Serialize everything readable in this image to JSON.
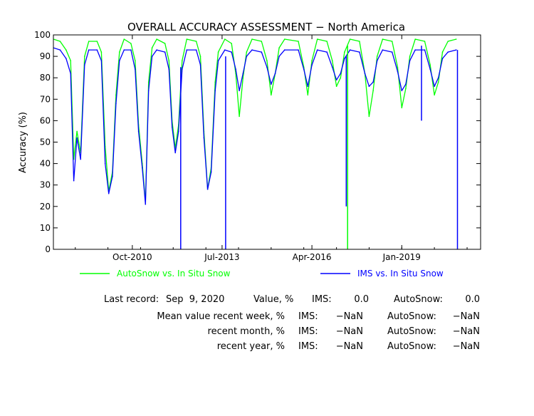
{
  "chart_data": {
    "type": "line",
    "title": "OVERALL ACCURACY ASSESSMENT − North America",
    "xlabel": "",
    "ylabel": "Accuracy (%)",
    "ylim": [
      0,
      100
    ],
    "yticks": [
      0,
      10,
      20,
      30,
      40,
      50,
      60,
      70,
      80,
      90,
      100
    ],
    "xlim": [
      "2008-05-01",
      "2021-06-01"
    ],
    "xticks": [
      {
        "date": "2010-10-01",
        "label": "Oct-2010"
      },
      {
        "date": "2013-07-01",
        "label": "Jul-2013"
      },
      {
        "date": "2016-04-01",
        "label": "Apr-2016"
      },
      {
        "date": "2019-01-01",
        "label": "Jan-2019"
      }
    ],
    "grid": false,
    "legend_position": "bottom",
    "series": [
      {
        "name": "AutoSnow vs. In Situ Snow",
        "color": "#00ff00",
        "points": [
          [
            "2008-05-01",
            98
          ],
          [
            "2008-07-15",
            97
          ],
          [
            "2008-09-20",
            93
          ],
          [
            "2008-11-10",
            88
          ],
          [
            "2008-12-15",
            42
          ],
          [
            "2009-01-20",
            55
          ],
          [
            "2009-03-01",
            45
          ],
          [
            "2009-04-15",
            90
          ],
          [
            "2009-06-01",
            97
          ],
          [
            "2009-09-01",
            97
          ],
          [
            "2009-10-20",
            92
          ],
          [
            "2009-12-01",
            48
          ],
          [
            "2010-01-10",
            27
          ],
          [
            "2010-02-20",
            36
          ],
          [
            "2010-04-01",
            72
          ],
          [
            "2010-05-10",
            92
          ],
          [
            "2010-07-01",
            98
          ],
          [
            "2010-09-15",
            96
          ],
          [
            "2010-11-01",
            88
          ],
          [
            "2010-12-10",
            58
          ],
          [
            "2011-01-20",
            40
          ],
          [
            "2011-02-25",
            22
          ],
          [
            "2011-04-01",
            78
          ],
          [
            "2011-05-10",
            94
          ],
          [
            "2011-07-01",
            98
          ],
          [
            "2011-10-01",
            96
          ],
          [
            "2011-11-15",
            88
          ],
          [
            "2011-12-20",
            60
          ],
          [
            "2012-01-25",
            47
          ],
          [
            "2012-03-01",
            58
          ],
          [
            "2012-04-10",
            88
          ],
          [
            "2012-06-01",
            98
          ],
          [
            "2012-09-15",
            97
          ],
          [
            "2012-11-01",
            90
          ],
          [
            "2012-12-10",
            55
          ],
          [
            "2013-01-20",
            28
          ],
          [
            "2013-03-01",
            38
          ],
          [
            "2013-04-15",
            78
          ],
          [
            "2013-05-20",
            92
          ],
          [
            "2013-08-01",
            98
          ],
          [
            "2013-10-15",
            96
          ],
          [
            "2013-12-01",
            82
          ],
          [
            "2014-01-10",
            62
          ],
          [
            "2014-02-20",
            80
          ],
          [
            "2014-04-01",
            92
          ],
          [
            "2014-06-01",
            98
          ],
          [
            "2014-09-15",
            97
          ],
          [
            "2014-11-15",
            88
          ],
          [
            "2015-01-01",
            72
          ],
          [
            "2015-02-15",
            82
          ],
          [
            "2015-04-01",
            94
          ],
          [
            "2015-06-01",
            98
          ],
          [
            "2015-11-01",
            97
          ],
          [
            "2016-01-01",
            85
          ],
          [
            "2016-02-15",
            72
          ],
          [
            "2016-04-01",
            88
          ],
          [
            "2016-06-01",
            98
          ],
          [
            "2016-09-15",
            97
          ],
          [
            "2016-11-15",
            88
          ],
          [
            "2017-01-01",
            76
          ],
          [
            "2017-02-15",
            80
          ],
          [
            "2017-04-01",
            92
          ],
          [
            "2017-06-01",
            98
          ],
          [
            "2017-09-15",
            97
          ],
          [
            "2017-11-15",
            82
          ],
          [
            "2018-01-01",
            62
          ],
          [
            "2018-02-15",
            74
          ],
          [
            "2018-04-01",
            90
          ],
          [
            "2018-06-01",
            98
          ],
          [
            "2018-09-15",
            97
          ],
          [
            "2018-11-15",
            85
          ],
          [
            "2019-01-01",
            66
          ],
          [
            "2019-02-15",
            75
          ],
          [
            "2019-04-01",
            90
          ],
          [
            "2019-06-01",
            98
          ],
          [
            "2019-09-15",
            97
          ],
          [
            "2019-11-15",
            86
          ],
          [
            "2020-01-01",
            72
          ],
          [
            "2020-02-15",
            78
          ],
          [
            "2020-04-01",
            92
          ],
          [
            "2020-06-01",
            97
          ],
          [
            "2020-09-01",
            98
          ]
        ]
      },
      {
        "name": "IMS vs. In Situ Snow",
        "color": "#0000ff",
        "points": [
          [
            "2008-05-01",
            94
          ],
          [
            "2008-07-15",
            93
          ],
          [
            "2008-09-20",
            89
          ],
          [
            "2008-11-10",
            82
          ],
          [
            "2008-12-15",
            32
          ],
          [
            "2009-01-20",
            52
          ],
          [
            "2009-03-01",
            42
          ],
          [
            "2009-04-15",
            86
          ],
          [
            "2009-06-01",
            93
          ],
          [
            "2009-09-01",
            93
          ],
          [
            "2009-10-20",
            88
          ],
          [
            "2009-12-01",
            40
          ],
          [
            "2010-01-10",
            26
          ],
          [
            "2010-02-20",
            34
          ],
          [
            "2010-04-01",
            68
          ],
          [
            "2010-05-10",
            88
          ],
          [
            "2010-07-01",
            93
          ],
          [
            "2010-09-15",
            93
          ],
          [
            "2010-11-01",
            84
          ],
          [
            "2010-12-10",
            55
          ],
          [
            "2011-01-20",
            38
          ],
          [
            "2011-02-25",
            21
          ],
          [
            "2011-04-01",
            74
          ],
          [
            "2011-05-10",
            90
          ],
          [
            "2011-07-01",
            93
          ],
          [
            "2011-10-01",
            92
          ],
          [
            "2011-11-15",
            84
          ],
          [
            "2011-12-20",
            57
          ],
          [
            "2012-01-25",
            45
          ],
          [
            "2012-03-01",
            55
          ],
          [
            "2012-04-10",
            84
          ],
          [
            "2012-06-01",
            93
          ],
          [
            "2012-09-15",
            93
          ],
          [
            "2012-11-01",
            86
          ],
          [
            "2012-12-10",
            52
          ],
          [
            "2013-01-20",
            28
          ],
          [
            "2013-03-01",
            36
          ],
          [
            "2013-04-15",
            74
          ],
          [
            "2013-05-20",
            88
          ],
          [
            "2013-08-01",
            93
          ],
          [
            "2013-10-15",
            92
          ],
          [
            "2013-12-01",
            84
          ],
          [
            "2014-01-10",
            74
          ],
          [
            "2014-02-20",
            82
          ],
          [
            "2014-04-01",
            90
          ],
          [
            "2014-06-01",
            93
          ],
          [
            "2014-09-15",
            92
          ],
          [
            "2014-11-15",
            85
          ],
          [
            "2015-01-01",
            77
          ],
          [
            "2015-02-15",
            82
          ],
          [
            "2015-04-01",
            90
          ],
          [
            "2015-06-01",
            93
          ],
          [
            "2015-11-01",
            93
          ],
          [
            "2016-01-01",
            84
          ],
          [
            "2016-02-15",
            76
          ],
          [
            "2016-04-01",
            86
          ],
          [
            "2016-06-01",
            93
          ],
          [
            "2016-09-15",
            92
          ],
          [
            "2016-11-15",
            85
          ],
          [
            "2017-01-01",
            79
          ],
          [
            "2017-02-15",
            82
          ],
          [
            "2017-04-01",
            89
          ],
          [
            "2017-06-01",
            93
          ],
          [
            "2017-09-15",
            92
          ],
          [
            "2017-11-15",
            82
          ],
          [
            "2018-01-01",
            76
          ],
          [
            "2018-02-15",
            78
          ],
          [
            "2018-04-01",
            88
          ],
          [
            "2018-06-01",
            93
          ],
          [
            "2018-09-15",
            92
          ],
          [
            "2018-11-15",
            83
          ],
          [
            "2019-01-01",
            74
          ],
          [
            "2019-02-15",
            77
          ],
          [
            "2019-04-01",
            88
          ],
          [
            "2019-06-01",
            93
          ],
          [
            "2019-09-15",
            93
          ],
          [
            "2019-11-15",
            84
          ],
          [
            "2020-01-01",
            76
          ],
          [
            "2020-02-15",
            80
          ],
          [
            "2020-04-01",
            89
          ],
          [
            "2020-06-01",
            92
          ],
          [
            "2020-09-01",
            93
          ]
        ]
      }
    ],
    "annotations": [
      {
        "series": "IMS vs. In Situ Snow",
        "date": "2012-03-25",
        "low": 0,
        "high": 85
      },
      {
        "series": "IMS vs. In Situ Snow",
        "date": "2013-08-10",
        "low": 0,
        "high": 90
      },
      {
        "series": "IMS vs. In Situ Snow",
        "date": "2017-04-20",
        "low": 20,
        "high": 90
      },
      {
        "series": "AutoSnow vs. In Situ Snow",
        "date": "2017-05-05",
        "low": 0,
        "high": 95
      },
      {
        "series": "IMS vs. In Situ Snow",
        "date": "2019-08-10",
        "low": 60,
        "high": 95
      },
      {
        "series": "IMS vs. In Situ Snow",
        "date": "2020-09-15",
        "low": 0,
        "high": 93
      }
    ]
  },
  "stats": {
    "last_record_label": "Last record:",
    "last_record_date": "Sep  9, 2020",
    "value_label": "Value, %",
    "rows": [
      {
        "label": "",
        "ims_label": "IMS:",
        "ims_value": "0.0",
        "autosnow_label": "AutoSnow:",
        "autosnow_value": "0.0"
      },
      {
        "label": "Mean value recent week, %",
        "ims_label": "IMS:",
        "ims_value": "−NaN",
        "autosnow_label": "AutoSnow:",
        "autosnow_value": "−NaN"
      },
      {
        "label": "recent month, %",
        "ims_label": "IMS:",
        "ims_value": "−NaN",
        "autosnow_label": "AutoSnow:",
        "autosnow_value": "−NaN"
      },
      {
        "label": "recent year, %",
        "ims_label": "IMS:",
        "ims_value": "−NaN",
        "autosnow_label": "AutoSnow:",
        "autosnow_value": "−NaN"
      }
    ]
  }
}
